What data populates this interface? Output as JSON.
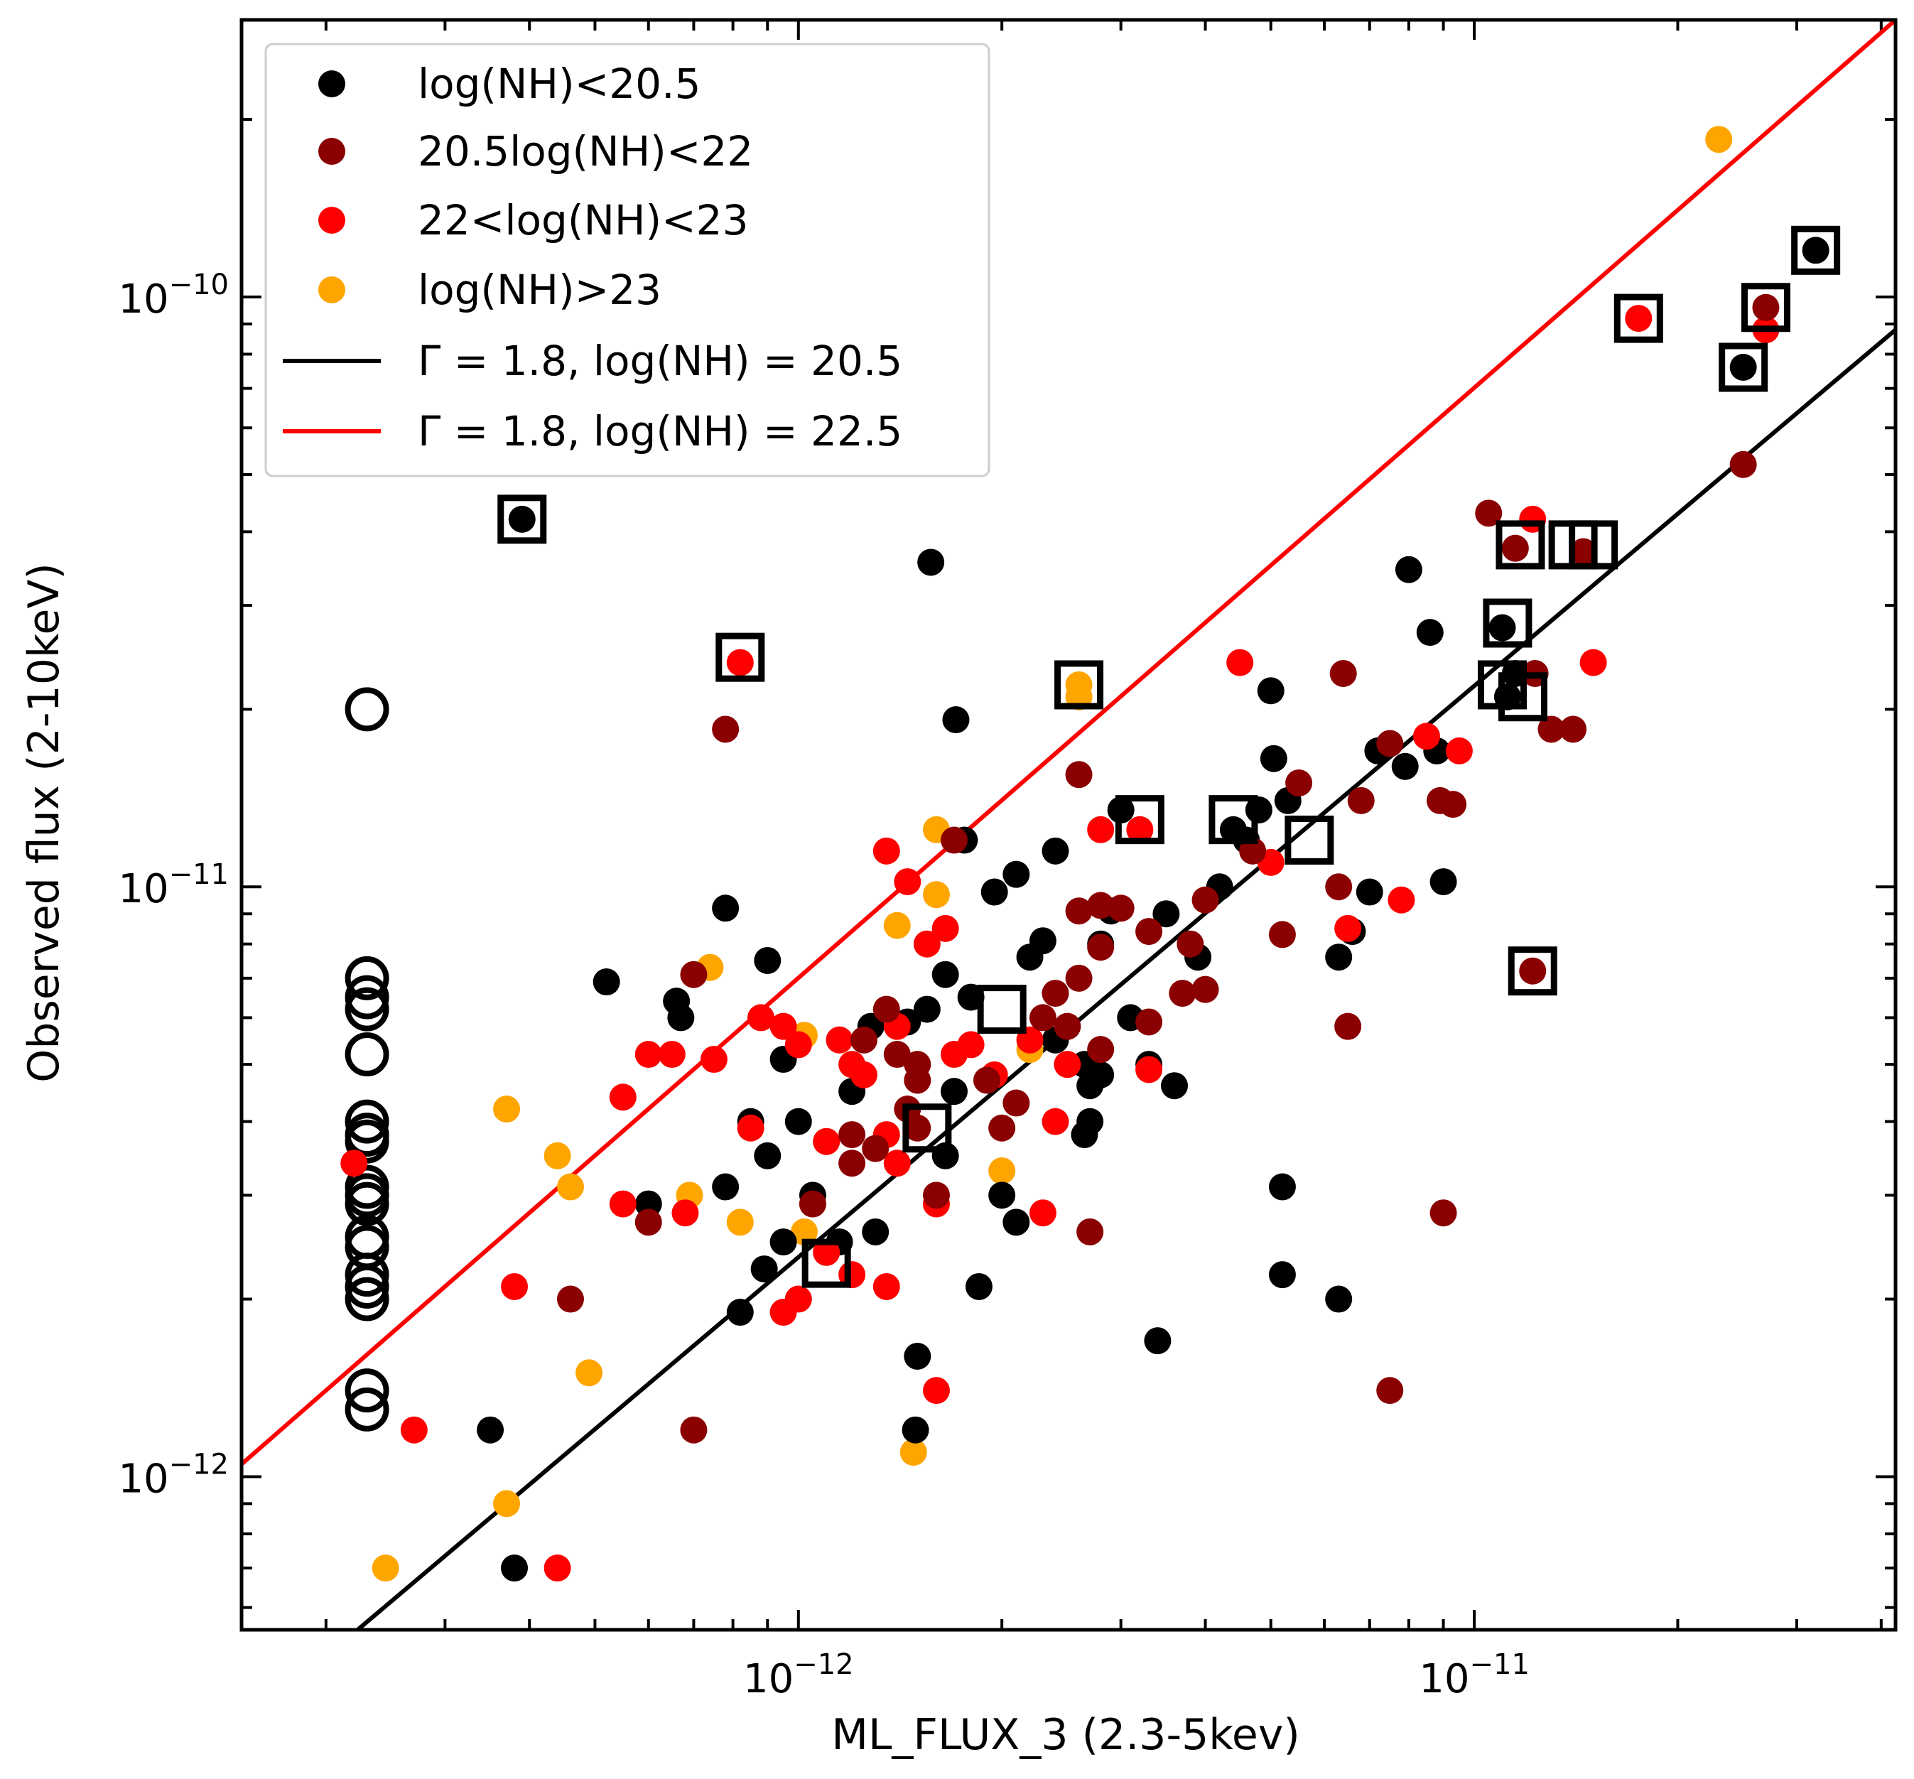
{
  "chart_data": {
    "type": "scatter",
    "title": "",
    "xlabel": "ML_FLUX_3 (2.3-5kev)",
    "ylabel": "Observed flux (2-10keV)",
    "xscale": "log",
    "yscale": "log",
    "xlim": [
      1.5e-13,
      4.2e-11
    ],
    "ylim": [
      5.5e-13,
      2.95e-10
    ],
    "x_ticks": [
      {
        "value": 1e-12,
        "base": "10",
        "exp": "−12"
      },
      {
        "value": 1e-11,
        "base": "10",
        "exp": "−11"
      }
    ],
    "y_ticks": [
      {
        "value": 1e-12,
        "base": "10",
        "exp": "−12"
      },
      {
        "value": 1e-11,
        "base": "10",
        "exp": "−11"
      },
      {
        "value": 1e-10,
        "base": "10",
        "exp": "−10"
      }
    ],
    "legend_position": "top-left",
    "colors": {
      "black": "#000000",
      "darkred": "#8b0000",
      "red": "#ff0000",
      "orange": "#ffa500"
    },
    "series": [
      {
        "name": "log(NH)<20.5",
        "color": "#000000",
        "points": [
          [
            3.9e-13,
            4.2e-11
          ],
          [
            1.57e-12,
            3.55e-11
          ],
          [
            1.71e-12,
            1.92e-11
          ],
          [
            2.4e-12,
            1.15e-11
          ],
          [
            1.76e-12,
            1.2e-11
          ],
          [
            2.1e-12,
            1.05e-11
          ],
          [
            1.95e-12,
            9.8e-12
          ],
          [
            7.8e-13,
            9.2e-12
          ],
          [
            9e-13,
            7.5e-12
          ],
          [
            5.2e-13,
            6.9e-12
          ],
          [
            6.6e-13,
            6.4e-12
          ],
          [
            6.7e-13,
            6e-12
          ],
          [
            1.28e-12,
            5.8e-12
          ],
          [
            1.45e-12,
            5.9e-12
          ],
          [
            1.65e-12,
            7.1e-12
          ],
          [
            1.8e-12,
            6.5e-12
          ],
          [
            2.2e-12,
            7.6e-12
          ],
          [
            2.3e-12,
            8.1e-12
          ],
          [
            3e-12,
            1.35e-11
          ],
          [
            2.9e-12,
            9.1e-12
          ],
          [
            2.8e-12,
            8e-12
          ],
          [
            3.1e-12,
            6e-12
          ],
          [
            2.4e-12,
            5.5e-12
          ],
          [
            2.65e-12,
            5e-12
          ],
          [
            2.8e-12,
            4.8e-12
          ],
          [
            2.7e-12,
            4.6e-12
          ],
          [
            3.6e-12,
            4.6e-12
          ],
          [
            3.3e-12,
            5e-12
          ],
          [
            3.5e-12,
            9e-12
          ],
          [
            3.9e-12,
            7.6e-12
          ],
          [
            4.2e-12,
            1e-11
          ],
          [
            4.6e-12,
            1.2e-11
          ],
          [
            5e-12,
            2.15e-11
          ],
          [
            5.05e-12,
            1.65e-11
          ],
          [
            5.3e-12,
            1.4e-11
          ],
          [
            4.8e-12,
            1.35e-11
          ],
          [
            4.4e-12,
            1.25e-11
          ],
          [
            6.6e-12,
            8.4e-12
          ],
          [
            7e-12,
            9.8e-12
          ],
          [
            7.2e-12,
            1.7e-11
          ],
          [
            7.9e-12,
            1.6e-11
          ],
          [
            8e-12,
            3.45e-11
          ],
          [
            8.6e-12,
            2.7e-11
          ],
          [
            8.8e-12,
            1.7e-11
          ],
          [
            9e-12,
            1.02e-11
          ],
          [
            1.1e-11,
            2.75e-11
          ],
          [
            1.12e-11,
            2.1e-11
          ],
          [
            1.15e-11,
            2.3e-11
          ],
          [
            2.5e-11,
            7.6e-11
          ],
          [
            3.2e-11,
            1.2e-10
          ],
          [
            6.3e-12,
            7.6e-12
          ],
          [
            5.2e-12,
            3.1e-12
          ],
          [
            5.2e-12,
            2.2e-12
          ],
          [
            6.3e-12,
            2e-12
          ],
          [
            3.4e-12,
            1.7e-12
          ],
          [
            1.85e-12,
            2.1e-12
          ],
          [
            1.5e-12,
            1.6e-12
          ],
          [
            1.49e-12,
            1.2e-12
          ],
          [
            3.5e-13,
            1.2e-12
          ],
          [
            3.8e-13,
            7e-13
          ],
          [
            8.2e-13,
            1.9e-12
          ],
          [
            8.9e-13,
            2.25e-12
          ],
          [
            9.5e-13,
            2.5e-12
          ],
          [
            1.05e-12,
            3e-12
          ],
          [
            1.15e-12,
            2.5e-12
          ],
          [
            1.3e-12,
            2.6e-12
          ],
          [
            1.2e-12,
            4.5e-12
          ],
          [
            1e-12,
            4e-12
          ],
          [
            9e-13,
            3.5e-12
          ],
          [
            8.5e-13,
            4e-12
          ],
          [
            7.8e-13,
            3.1e-12
          ],
          [
            9.5e-13,
            5.1e-12
          ],
          [
            2e-12,
            3e-12
          ],
          [
            2.1e-12,
            2.7e-12
          ],
          [
            2.65e-12,
            3.8e-12
          ],
          [
            2.7e-12,
            4e-12
          ],
          [
            1.7e-12,
            4.5e-12
          ],
          [
            1.65e-12,
            3.5e-12
          ],
          [
            6e-13,
            2.9e-12
          ],
          [
            1.55e-12,
            6.2e-12
          ]
        ]
      },
      {
        "name": "20.5log(NH)<22",
        "color": "#8b0000",
        "points": [
          [
            7.8e-13,
            1.85e-11
          ],
          [
            2.6e-12,
            1.55e-11
          ],
          [
            1.7e-12,
            1.2e-11
          ],
          [
            2.6e-12,
            9.1e-12
          ],
          [
            2.8e-12,
            9.3e-12
          ],
          [
            3e-12,
            9.2e-12
          ],
          [
            2.6e-12,
            7e-12
          ],
          [
            2.4e-12,
            6.6e-12
          ],
          [
            1.35e-12,
            6.2e-12
          ],
          [
            1.25e-12,
            5.5e-12
          ],
          [
            1.4e-12,
            5.2e-12
          ],
          [
            1.5e-12,
            5e-12
          ],
          [
            1.5e-12,
            4.7e-12
          ],
          [
            1.45e-12,
            4.2e-12
          ],
          [
            1.9e-12,
            4.7e-12
          ],
          [
            1.5e-12,
            3.9e-12
          ],
          [
            1.2e-12,
            3.8e-12
          ],
          [
            1.3e-12,
            3.6e-12
          ],
          [
            1.2e-12,
            3.4e-12
          ],
          [
            2e-12,
            3.9e-12
          ],
          [
            2.1e-12,
            4.3e-12
          ],
          [
            2.3e-12,
            6e-12
          ],
          [
            2.5e-12,
            5.8e-12
          ],
          [
            2.8e-12,
            5.3e-12
          ],
          [
            3.3e-12,
            5.9e-12
          ],
          [
            3.7e-12,
            6.6e-12
          ],
          [
            3.8e-12,
            8e-12
          ],
          [
            3.3e-12,
            8.4e-12
          ],
          [
            4e-12,
            9.5e-12
          ],
          [
            4.7e-12,
            1.15e-11
          ],
          [
            5.5e-12,
            1.5e-11
          ],
          [
            6.4e-12,
            2.3e-11
          ],
          [
            6.8e-12,
            1.4e-11
          ],
          [
            7.5e-12,
            1.75e-11
          ],
          [
            8.9e-12,
            1.4e-11
          ],
          [
            9.3e-12,
            1.38e-11
          ],
          [
            1.05e-11,
            4.3e-11
          ],
          [
            1.15e-11,
            3.75e-11
          ],
          [
            1.23e-11,
            2.3e-11
          ],
          [
            1.3e-11,
            1.85e-11
          ],
          [
            1.4e-11,
            1.85e-11
          ],
          [
            1.45e-11,
            3.7e-11
          ],
          [
            2.5e-11,
            5.2e-11
          ],
          [
            2.7e-11,
            9.6e-11
          ],
          [
            1.22e-11,
            7.2e-12
          ],
          [
            6.5e-12,
            5.8e-12
          ],
          [
            6.3e-12,
            1e-11
          ],
          [
            5.2e-12,
            8.3e-12
          ],
          [
            9e-12,
            2.8e-12
          ],
          [
            7.5e-12,
            1.4e-12
          ],
          [
            2.7e-12,
            2.6e-12
          ],
          [
            1.6e-12,
            3e-12
          ],
          [
            1.05e-12,
            2.9e-12
          ],
          [
            6e-13,
            2.7e-12
          ],
          [
            4.6e-13,
            2e-12
          ],
          [
            7e-13,
            1.2e-12
          ],
          [
            7e-13,
            7.1e-12
          ],
          [
            4e-12,
            6.7e-12
          ],
          [
            2.8e-12,
            7.9e-12
          ]
        ]
      },
      {
        "name": "22<log(NH)<23",
        "color": "#ff0000",
        "points": [
          [
            8.2e-13,
            2.4e-11
          ],
          [
            1.35e-12,
            1.15e-11
          ],
          [
            1.45e-12,
            1.02e-11
          ],
          [
            1.65e-12,
            8.5e-12
          ],
          [
            1.55e-12,
            8e-12
          ],
          [
            2.8e-12,
            1.25e-11
          ],
          [
            3.2e-12,
            1.25e-11
          ],
          [
            4.5e-12,
            2.4e-11
          ],
          [
            5e-12,
            1.1e-11
          ],
          [
            6.5e-12,
            8.5e-12
          ],
          [
            8.5e-12,
            1.8e-11
          ],
          [
            9.5e-12,
            1.7e-11
          ],
          [
            7.8e-12,
            9.5e-12
          ],
          [
            1.22e-11,
            4.2e-11
          ],
          [
            1.5e-11,
            2.4e-11
          ],
          [
            1.75e-11,
            9.2e-11
          ],
          [
            2.7e-11,
            8.8e-11
          ],
          [
            5.5e-13,
            4.4e-12
          ],
          [
            6e-13,
            5.2e-12
          ],
          [
            6.5e-13,
            5.2e-12
          ],
          [
            7.5e-13,
            5.1e-12
          ],
          [
            8.8e-13,
            6e-12
          ],
          [
            9.5e-13,
            5.8e-12
          ],
          [
            1e-12,
            5.4e-12
          ],
          [
            1.15e-12,
            5.5e-12
          ],
          [
            1.2e-12,
            5e-12
          ],
          [
            1.25e-12,
            4.8e-12
          ],
          [
            1.4e-12,
            5.8e-12
          ],
          [
            1.35e-12,
            3.8e-12
          ],
          [
            1.7e-12,
            5.2e-12
          ],
          [
            1.8e-12,
            5.4e-12
          ],
          [
            1.95e-12,
            4.8e-12
          ],
          [
            2.2e-12,
            5.5e-12
          ],
          [
            2.5e-12,
            5e-12
          ],
          [
            2.4e-12,
            4e-12
          ],
          [
            3.3e-12,
            4.9e-12
          ],
          [
            8.5e-13,
            3.9e-12
          ],
          [
            1.1e-12,
            3.7e-12
          ],
          [
            1.4e-12,
            3.4e-12
          ],
          [
            1.6e-12,
            2.9e-12
          ],
          [
            2.3e-12,
            2.8e-12
          ],
          [
            5.5e-13,
            2.9e-12
          ],
          [
            6.8e-13,
            2.8e-12
          ],
          [
            9.5e-13,
            1.9e-12
          ],
          [
            1e-12,
            2e-12
          ],
          [
            1.1e-12,
            2.4e-12
          ],
          [
            1.35e-12,
            2.1e-12
          ],
          [
            1.6e-12,
            1.4e-12
          ],
          [
            3.8e-13,
            2.1e-12
          ],
          [
            2.7e-13,
            1.2e-12
          ],
          [
            4.4e-13,
            7e-13
          ],
          [
            2.2e-13,
            3.4e-12
          ],
          [
            1.2e-12,
            2.2e-12
          ]
        ]
      },
      {
        "name": "log(NH)>23",
        "color": "#ffa500",
        "points": [
          [
            2.3e-11,
            1.85e-10
          ],
          [
            2.6e-12,
            2.2e-11
          ],
          [
            2.6e-12,
            2.1e-11
          ],
          [
            1.6e-12,
            1.25e-11
          ],
          [
            1.6e-12,
            9.7e-12
          ],
          [
            1.4e-12,
            8.6e-12
          ],
          [
            7.4e-13,
            7.3e-12
          ],
          [
            1.02e-12,
            5.6e-12
          ],
          [
            2.2e-12,
            5.3e-12
          ],
          [
            3.7e-13,
            4.2e-12
          ],
          [
            4.4e-13,
            3.5e-12
          ],
          [
            4.6e-13,
            3.1e-12
          ],
          [
            6.9e-13,
            3e-12
          ],
          [
            8.2e-13,
            2.7e-12
          ],
          [
            1.1e-12,
            3.7e-12
          ],
          [
            1.05e-12,
            2.9e-12
          ],
          [
            1.02e-12,
            2.6e-12
          ],
          [
            2e-12,
            3.3e-12
          ],
          [
            4.9e-13,
            1.5e-12
          ],
          [
            3.7e-13,
            9e-13
          ],
          [
            2.45e-13,
            7e-13
          ],
          [
            1.48e-12,
            1.1e-12
          ]
        ]
      }
    ],
    "open_circles": {
      "x": 2.3e-13,
      "y": [
        2e-11,
        7e-12,
        6.5e-12,
        6.2e-12,
        5.2e-12,
        4e-12,
        3.8e-12,
        3.7e-12,
        3.1e-12,
        3e-12,
        2.9e-12,
        2.55e-12,
        2.45e-12,
        2.2e-12,
        2.1e-12,
        2e-12,
        1.4e-12,
        1.3e-12
      ]
    },
    "highlight_squares": [
      [
        3.9e-13,
        4.2e-11
      ],
      [
        8.2e-13,
        2.45e-11
      ],
      [
        2.6e-12,
        2.2e-11
      ],
      [
        3.2e-12,
        1.3e-11
      ],
      [
        4.4e-12,
        1.3e-11
      ],
      [
        5.7e-12,
        1.2e-11
      ],
      [
        2e-12,
        6.2e-12
      ],
      [
        1.55e-12,
        3.9e-12
      ],
      [
        1.1e-12,
        2.3e-12
      ],
      [
        1.12e-11,
        2.8e-11
      ],
      [
        1.17e-11,
        3.8e-11
      ],
      [
        1.4e-11,
        3.8e-11
      ],
      [
        1.5e-11,
        3.8e-11
      ],
      [
        1.1e-11,
        2.2e-11
      ],
      [
        1.18e-11,
        2.1e-11
      ],
      [
        1.22e-11,
        7.2e-12
      ],
      [
        1.75e-11,
        9.2e-11
      ],
      [
        2.5e-11,
        7.6e-11
      ],
      [
        2.7e-11,
        9.6e-11
      ],
      [
        3.2e-11,
        1.2e-10
      ]
    ],
    "reference_lines": [
      {
        "name": "Γ = 1.8, log(NH) = 20.5",
        "color": "#000000",
        "x": [
          1.5e-13,
          4.2e-11
        ],
        "y": [
          3.75e-13,
          8.8e-11
        ]
      },
      {
        "name": "Γ = 1.8, log(NH) = 22.5",
        "color": "#ff0000",
        "x": [
          1.5e-13,
          4.2e-11
        ],
        "y": [
          1.05e-12,
          2.95e-10
        ]
      }
    ]
  }
}
